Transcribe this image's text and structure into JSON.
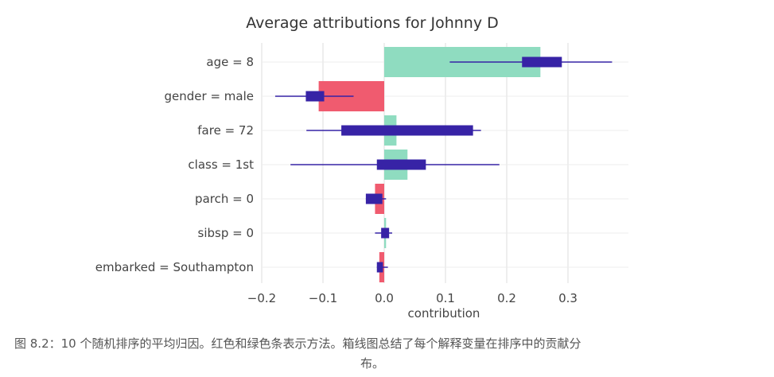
{
  "chart_data": {
    "type": "bar",
    "title": "Average attributions for Johnny D",
    "xlabel": "contribution",
    "ylabel": "",
    "xlim": [
      -0.2,
      0.37
    ],
    "xticks": [
      -0.2,
      -0.1,
      0.0,
      0.1,
      0.2,
      0.3
    ],
    "xtick_labels": [
      "−0.2",
      "−0.1",
      "0.0",
      "0.1",
      "0.2",
      "0.3"
    ],
    "grid": true,
    "colors": {
      "positive": "#8fdcc0",
      "negative": "#f05b6f",
      "box": "#3723a6"
    },
    "categories": [
      "age = 8",
      "gender = male",
      "fare = 72",
      "class = 1st",
      "parch = 0",
      "sibsp = 0",
      "embarked = Southampton"
    ],
    "values": [
      0.255,
      -0.107,
      0.02,
      0.038,
      -0.015,
      0.003,
      -0.008
    ],
    "boxes": [
      {
        "min": 0.107,
        "q1": 0.225,
        "q3": 0.29,
        "max": 0.372
      },
      {
        "min": -0.178,
        "q1": -0.128,
        "q3": -0.098,
        "max": -0.05
      },
      {
        "min": -0.127,
        "q1": -0.07,
        "q3": 0.145,
        "max": 0.158
      },
      {
        "min": -0.153,
        "q1": -0.012,
        "q3": 0.068,
        "max": 0.188
      },
      {
        "min": -0.03,
        "q1": -0.03,
        "q3": -0.003,
        "max": 0.003
      },
      {
        "min": -0.015,
        "q1": -0.005,
        "q3": 0.008,
        "max": 0.013
      },
      {
        "min": -0.012,
        "q1": -0.012,
        "q3": -0.002,
        "max": 0.006
      }
    ]
  },
  "caption": {
    "line1": "图 8.2：10 个随机排序的平均归因。红色和绿色条表示方法。箱线图总结了每个解释变量在排序中的贡献分",
    "line2": "布。"
  }
}
